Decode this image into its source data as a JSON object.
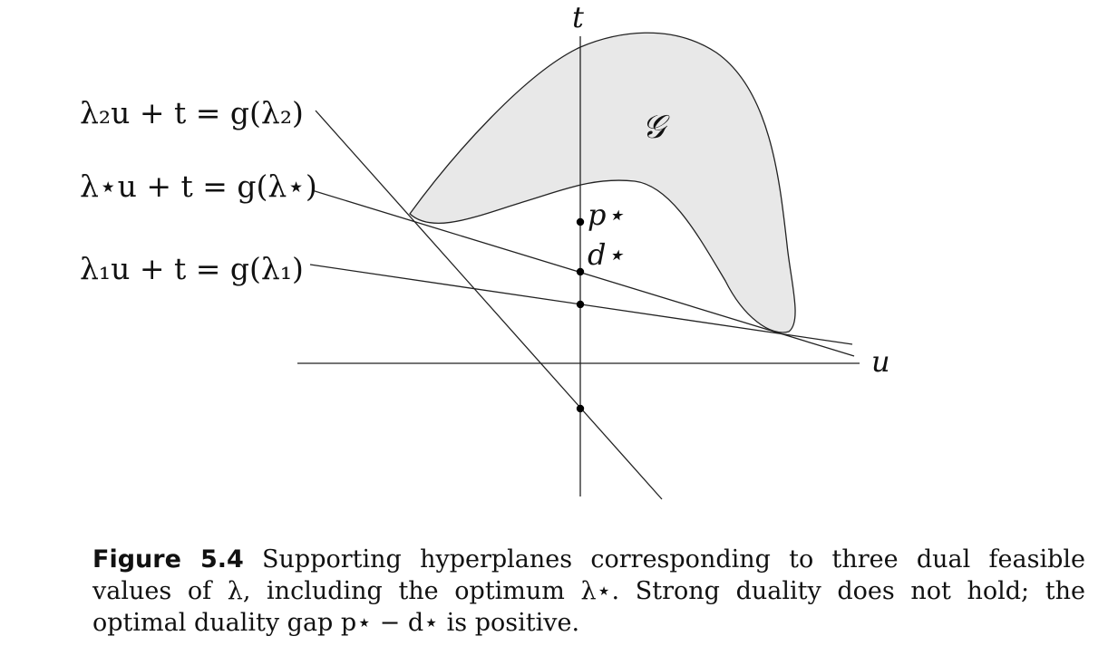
{
  "axes": {
    "t_label": "t",
    "u_label": "u"
  },
  "set": {
    "label": "𝒢",
    "fill": "#e8e8e8"
  },
  "lines": [
    {
      "id": "lambda2",
      "label": "λ₂u + t = g(λ₂)"
    },
    {
      "id": "lambda_star",
      "label": "λ⋆u + t = g(λ⋆)"
    },
    {
      "id": "lambda1",
      "label": "λ₁u + t = g(λ₁)"
    }
  ],
  "points": {
    "p_star_label": "p⋆",
    "d_star_label": "d⋆"
  },
  "caption": {
    "label": "Figure 5.4",
    "text": "Supporting hyperplanes corresponding to three dual feasible values of λ, including the optimum λ⋆. Strong duality does not hold; the optimal duality gap p⋆ − d⋆ is positive."
  }
}
